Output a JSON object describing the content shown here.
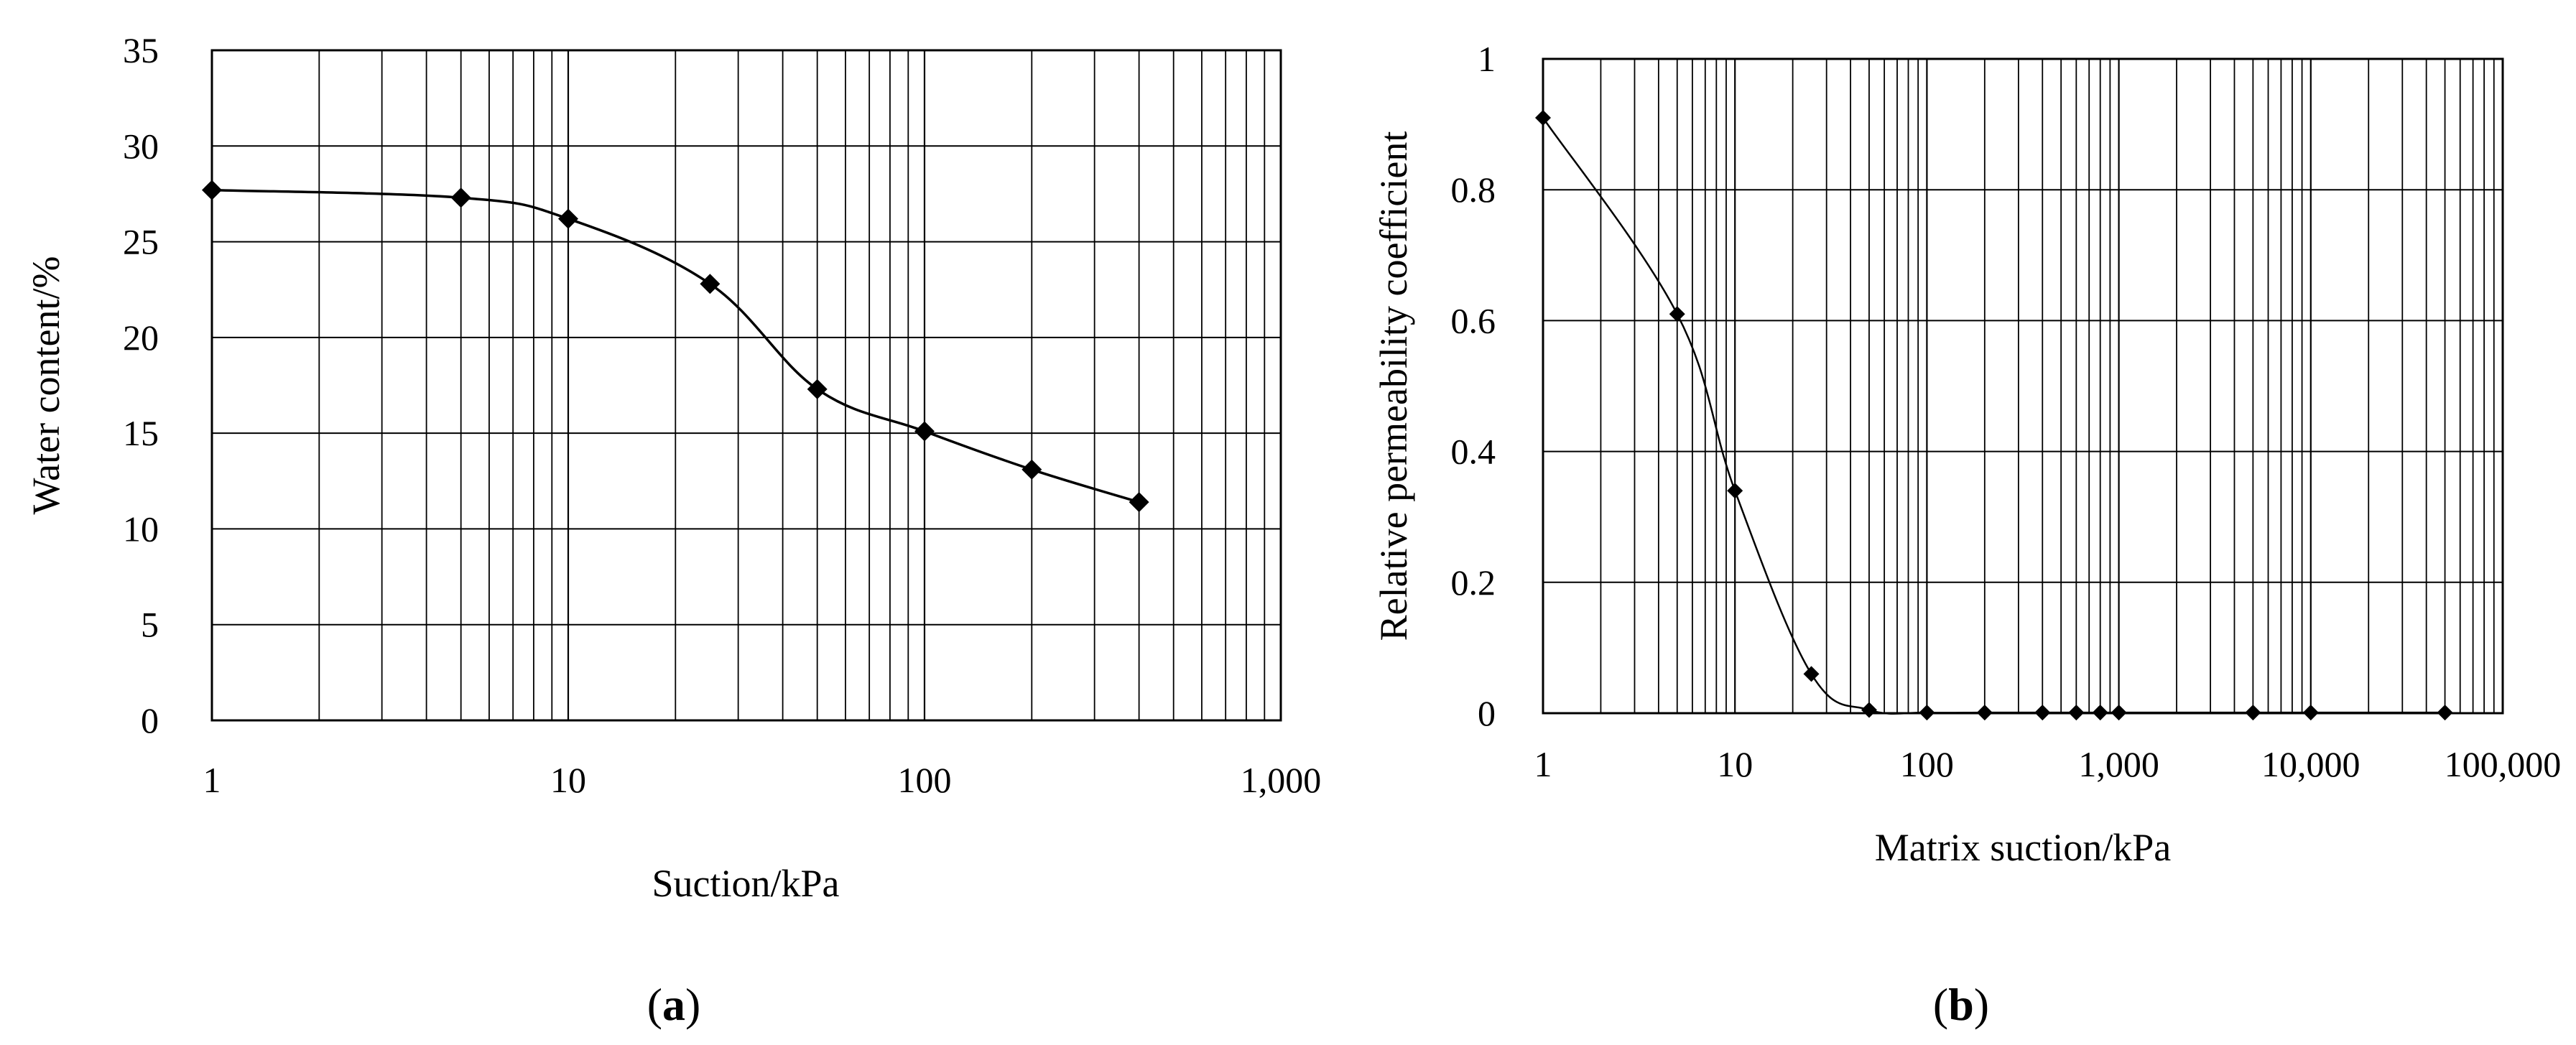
{
  "chart_data": [
    {
      "type": "line",
      "panel_caption": "a",
      "xlabel": "Suction/kPa",
      "ylabel": "Water content/%",
      "x_scale": "log",
      "xlim": [
        1,
        1000
      ],
      "ylim": [
        0,
        35
      ],
      "x_tick_labels": [
        "1",
        "10",
        "100",
        "1,000"
      ],
      "y_ticks": [
        0,
        5,
        10,
        15,
        20,
        25,
        30,
        35
      ],
      "grid": true,
      "marker": "diamond",
      "series": [
        {
          "x": [
            1,
            5,
            10,
            25,
            50,
            100,
            200,
            400
          ],
          "y": [
            27.7,
            27.3,
            26.2,
            22.8,
            17.3,
            15.1,
            13.1,
            11.4
          ]
        }
      ]
    },
    {
      "type": "line",
      "panel_caption": "b",
      "xlabel": "Matrix suction/kPa",
      "ylabel": "Relative permeability coefficient",
      "x_scale": "log",
      "xlim": [
        1,
        100000
      ],
      "ylim": [
        0,
        1
      ],
      "x_tick_labels": [
        "1",
        "10",
        "100",
        "1,000",
        "10,000",
        "100,000"
      ],
      "y_ticks": [
        0,
        0.2,
        0.4,
        0.6,
        0.8,
        1
      ],
      "grid": true,
      "marker": "diamond",
      "series": [
        {
          "x": [
            1,
            5,
            10,
            25,
            50,
            100,
            200,
            400,
            600,
            800,
            1000,
            5000,
            10000,
            50000
          ],
          "y": [
            0.91,
            0.61,
            0.34,
            0.06,
            0.005,
            0.001,
            0.001,
            0.001,
            0.001,
            0.001,
            0.001,
            0.001,
            0.001,
            0.001
          ]
        }
      ]
    }
  ]
}
